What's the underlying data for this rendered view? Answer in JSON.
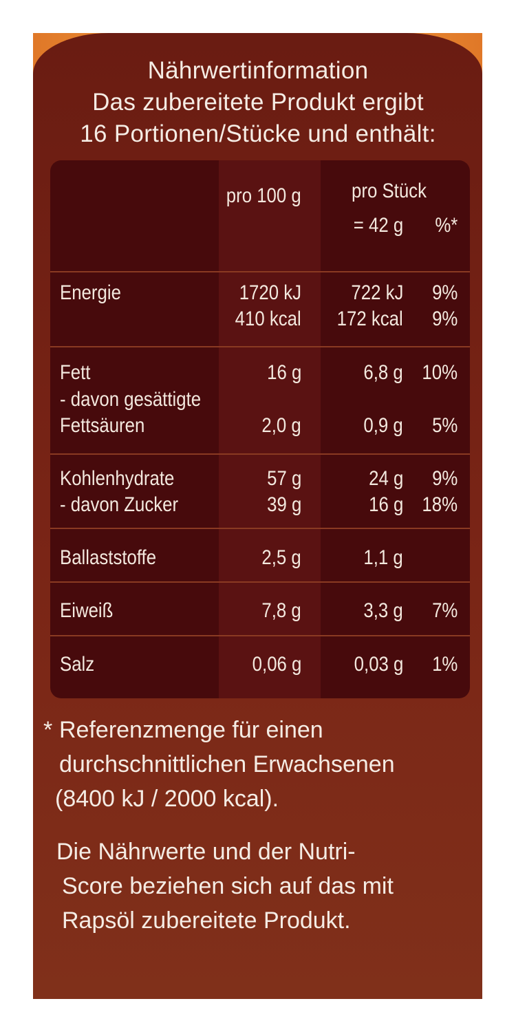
{
  "header": {
    "line1": "Nährwertinformation",
    "line2": "Das zubereitete Produkt ergibt",
    "line3": "16 Portionen/Stücke und enthält:"
  },
  "table": {
    "col_100g": "pro 100 g",
    "col_piece": "pro Stück",
    "col_piece_sub": "= 42 g",
    "col_percent": "%*",
    "rows": {
      "energie_label": "Energie",
      "energie_kj_100": "1720 kJ",
      "energie_kcal_100": "410 kcal",
      "energie_kj_piece": "722 kJ",
      "energie_kcal_piece": "172 kcal",
      "energie_kj_pct": "9%",
      "energie_kcal_pct": "9%",
      "fett_label": "Fett",
      "fett_100": "16 g",
      "fett_piece": "6,8 g",
      "fett_pct": "10%",
      "gesaettigt_label1": "- davon gesättigte",
      "gesaettigt_label2": "Fettsäuren",
      "gesaettigt_100": "2,0 g",
      "gesaettigt_piece": "0,9 g",
      "gesaettigt_pct": "5%",
      "kh_label": "Kohlenhydrate",
      "kh_100": "57 g",
      "kh_piece": "24 g",
      "kh_pct": "9%",
      "zucker_label": "- davon Zucker",
      "zucker_100": "39 g",
      "zucker_piece": "16 g",
      "zucker_pct": "18%",
      "ballast_label": "Ballaststoffe",
      "ballast_100": "2,5 g",
      "ballast_piece": "1,1 g",
      "eiweiss_label": "Eiweiß",
      "eiweiss_100": "7,8 g",
      "eiweiss_piece": "3,3 g",
      "eiweiss_pct": "7%",
      "salz_label": "Salz",
      "salz_100": "0,06 g",
      "salz_piece": "0,03 g",
      "salz_pct": "1%"
    }
  },
  "footnote": {
    "star": "*",
    "line1": "Referenzmenge für einen",
    "line2": "durchschnittlichen Erwachsenen",
    "line3": "(8400 kJ / 2000 kcal)."
  },
  "note": {
    "line1": "Die Nährwerte und der Nutri-",
    "line2": "Score beziehen sich auf das mit",
    "line3": "Rapsöl zubereitete Produkt."
  }
}
